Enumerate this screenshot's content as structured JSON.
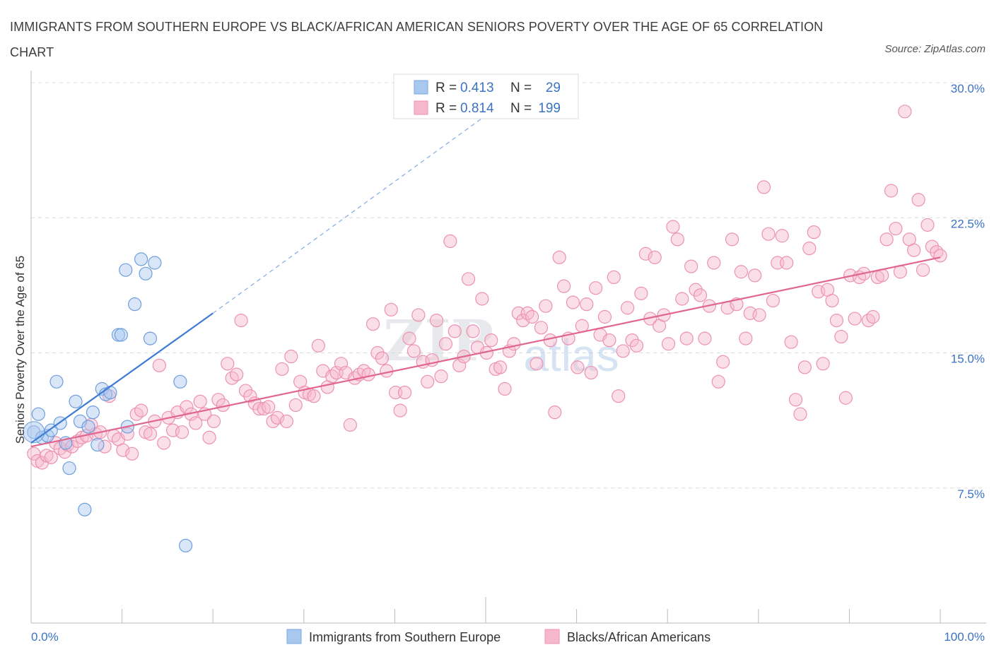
{
  "title": "IMMIGRANTS FROM SOUTHERN EUROPE VS BLACK/AFRICAN AMERICAN SENIORS POVERTY OVER THE AGE OF 65 CORRELATION CHART",
  "source": "Source: ZipAtlas.com",
  "watermark": "ZIPatlas",
  "legend_top": {
    "rows": [
      {
        "r_label": "R =",
        "r_value": "0.413",
        "n_label": "N =",
        "n_value": "29",
        "color": "#a9c8f0"
      },
      {
        "r_label": "R =",
        "r_value": "0.814",
        "n_label": "N =",
        "n_value": "199",
        "color": "#f6b8cc"
      }
    ]
  },
  "legend_bottom": [
    "Immigrants from Southern Europe",
    "Blacks/African Americans"
  ],
  "colors": {
    "blue": "#3e7bd4",
    "blue_fill": "#a9c8f0",
    "pink": "#e0668f",
    "pink_fill": "#f6b8cc",
    "tick": "#3b73c4"
  },
  "chart_data": {
    "type": "scatter",
    "title": "IMMIGRANTS FROM SOUTHERN EUROPE VS BLACK/AFRICAN AMERICAN SENIORS POVERTY OVER THE AGE OF 65 CORRELATION CHART",
    "xlabel": "",
    "ylabel": "Seniors Poverty Over the Age of 65",
    "x_tick_labels": [
      "0.0%",
      "100.0%"
    ],
    "y_tick_labels": [
      "7.5%",
      "15.0%",
      "22.5%",
      "30.0%"
    ],
    "y_ticks": [
      7.5,
      15.0,
      22.5,
      30.0
    ],
    "xlim": [
      0,
      100
    ],
    "ylim": [
      0,
      30.5
    ],
    "grid": true,
    "legend_placement": "top-center",
    "series": [
      {
        "name": "Immigrants from Southern Europe",
        "points": [
          [
            0.3,
            10.6
          ],
          [
            0.8,
            11.6
          ],
          [
            1.2,
            10.3
          ],
          [
            1.8,
            10.4
          ],
          [
            2.2,
            10.7
          ],
          [
            2.8,
            13.4
          ],
          [
            3.2,
            11.1
          ],
          [
            3.8,
            10.0
          ],
          [
            4.2,
            8.6
          ],
          [
            4.9,
            12.3
          ],
          [
            5.4,
            11.2
          ],
          [
            5.9,
            6.3
          ],
          [
            6.3,
            10.9
          ],
          [
            6.8,
            11.7
          ],
          [
            7.3,
            9.9
          ],
          [
            7.8,
            13.0
          ],
          [
            8.2,
            12.7
          ],
          [
            8.7,
            12.8
          ],
          [
            9.6,
            16.0
          ],
          [
            9.9,
            16.0
          ],
          [
            10.6,
            10.9
          ],
          [
            10.4,
            19.6
          ],
          [
            11.4,
            17.7
          ],
          [
            12.1,
            20.2
          ],
          [
            12.6,
            19.4
          ],
          [
            13.1,
            15.8
          ],
          [
            13.6,
            20.0
          ],
          [
            16.4,
            13.4
          ],
          [
            17.0,
            4.3
          ]
        ],
        "trend": {
          "x0": 0,
          "y0": 10.0,
          "x1": 20,
          "y1": 17.2
        },
        "trend_dashed": {
          "x0": 20,
          "y0": 17.2,
          "x1": 55,
          "y1": 30.0
        }
      },
      {
        "name": "Blacks/African Americans",
        "points": [
          [
            0.3,
            9.4
          ],
          [
            0.7,
            9.0
          ],
          [
            1.2,
            8.9
          ],
          [
            1.7,
            9.3
          ],
          [
            2.2,
            9.2
          ],
          [
            2.7,
            10.0
          ],
          [
            3.2,
            9.7
          ],
          [
            3.7,
            9.5
          ],
          [
            4.0,
            9.9
          ],
          [
            4.5,
            9.8
          ],
          [
            5.1,
            10.1
          ],
          [
            5.6,
            10.3
          ],
          [
            6.1,
            10.4
          ],
          [
            6.6,
            11.0
          ],
          [
            7.1,
            10.5
          ],
          [
            7.6,
            10.6
          ],
          [
            8.1,
            9.8
          ],
          [
            8.6,
            12.6
          ],
          [
            9.1,
            10.4
          ],
          [
            9.6,
            10.2
          ],
          [
            10.1,
            9.6
          ],
          [
            10.6,
            10.5
          ],
          [
            11.1,
            9.4
          ],
          [
            11.6,
            11.6
          ],
          [
            12.1,
            11.8
          ],
          [
            12.6,
            10.6
          ],
          [
            13.1,
            10.5
          ],
          [
            13.6,
            11.2
          ],
          [
            14.1,
            14.3
          ],
          [
            14.6,
            10.0
          ],
          [
            15.1,
            11.4
          ],
          [
            15.6,
            10.7
          ],
          [
            16.1,
            11.7
          ],
          [
            16.6,
            10.6
          ],
          [
            17.1,
            12.0
          ],
          [
            17.6,
            11.6
          ],
          [
            18.1,
            11.1
          ],
          [
            18.6,
            12.3
          ],
          [
            19.1,
            11.6
          ],
          [
            19.6,
            10.3
          ],
          [
            20.1,
            11.2
          ],
          [
            20.6,
            12.4
          ],
          [
            21.1,
            12.1
          ],
          [
            21.6,
            14.4
          ],
          [
            22.1,
            13.6
          ],
          [
            22.6,
            13.8
          ],
          [
            23.1,
            16.8
          ],
          [
            23.6,
            12.9
          ],
          [
            24.1,
            12.6
          ],
          [
            24.6,
            12.2
          ],
          [
            25.1,
            11.9
          ],
          [
            25.6,
            11.9
          ],
          [
            26.1,
            12.0
          ],
          [
            26.6,
            11.2
          ],
          [
            27.1,
            11.4
          ],
          [
            27.6,
            14.1
          ],
          [
            28.1,
            11.2
          ],
          [
            28.6,
            14.8
          ],
          [
            29.1,
            12.1
          ],
          [
            29.6,
            13.4
          ],
          [
            30.1,
            12.8
          ],
          [
            30.6,
            12.7
          ],
          [
            31.1,
            12.6
          ],
          [
            31.6,
            15.4
          ],
          [
            32.1,
            14.0
          ],
          [
            32.6,
            13.1
          ],
          [
            33.1,
            13.7
          ],
          [
            33.6,
            13.9
          ],
          [
            34.1,
            14.4
          ],
          [
            34.6,
            13.9
          ],
          [
            35.1,
            11.0
          ],
          [
            35.6,
            13.6
          ],
          [
            36.1,
            13.8
          ],
          [
            36.6,
            14.0
          ],
          [
            37.1,
            13.8
          ],
          [
            37.6,
            16.6
          ],
          [
            38.1,
            15.0
          ],
          [
            38.6,
            14.7
          ],
          [
            39.1,
            14.0
          ],
          [
            39.6,
            17.4
          ],
          [
            40.1,
            12.8
          ],
          [
            40.6,
            11.8
          ],
          [
            41.1,
            12.8
          ],
          [
            41.6,
            15.8
          ],
          [
            42.1,
            15.1
          ],
          [
            42.6,
            17.1
          ],
          [
            43.1,
            14.5
          ],
          [
            43.6,
            13.4
          ],
          [
            44.1,
            14.6
          ],
          [
            44.6,
            16.8
          ],
          [
            45.1,
            13.7
          ],
          [
            45.6,
            15.5
          ],
          [
            46.1,
            21.2
          ],
          [
            46.6,
            16.2
          ],
          [
            47.1,
            14.3
          ],
          [
            47.6,
            14.8
          ],
          [
            48.1,
            19.1
          ],
          [
            48.6,
            16.2
          ],
          [
            49.1,
            15.3
          ],
          [
            49.6,
            18.0
          ],
          [
            50.1,
            15.0
          ],
          [
            50.6,
            15.7
          ],
          [
            51.1,
            14.1
          ],
          [
            51.6,
            14.2
          ],
          [
            52.1,
            13.0
          ],
          [
            52.6,
            15.1
          ],
          [
            53.1,
            15.5
          ],
          [
            53.6,
            17.2
          ],
          [
            54.1,
            16.8
          ],
          [
            54.6,
            17.2
          ],
          [
            55.1,
            17.0
          ],
          [
            55.6,
            14.4
          ],
          [
            56.1,
            16.4
          ],
          [
            56.6,
            17.6
          ],
          [
            57.1,
            15.7
          ],
          [
            57.6,
            11.7
          ],
          [
            58.1,
            20.3
          ],
          [
            58.6,
            18.7
          ],
          [
            59.1,
            15.8
          ],
          [
            59.6,
            17.8
          ],
          [
            60.1,
            14.2
          ],
          [
            60.6,
            16.5
          ],
          [
            61.1,
            17.7
          ],
          [
            61.6,
            13.9
          ],
          [
            62.1,
            18.6
          ],
          [
            62.6,
            16.0
          ],
          [
            63.1,
            17.0
          ],
          [
            63.6,
            15.7
          ],
          [
            64.1,
            19.2
          ],
          [
            64.6,
            12.6
          ],
          [
            65.1,
            15.1
          ],
          [
            65.6,
            17.5
          ],
          [
            66.1,
            15.7
          ],
          [
            66.6,
            15.4
          ],
          [
            67.1,
            18.3
          ],
          [
            67.6,
            20.5
          ],
          [
            68.1,
            16.9
          ],
          [
            68.6,
            20.3
          ],
          [
            69.1,
            16.5
          ],
          [
            69.6,
            17.1
          ],
          [
            70.1,
            15.5
          ],
          [
            70.6,
            22.0
          ],
          [
            71.1,
            21.3
          ],
          [
            71.6,
            18.0
          ],
          [
            72.1,
            15.8
          ],
          [
            72.6,
            19.8
          ],
          [
            73.1,
            18.5
          ],
          [
            73.6,
            18.2
          ],
          [
            74.1,
            15.8
          ],
          [
            74.6,
            17.6
          ],
          [
            75.1,
            20.0
          ],
          [
            75.6,
            13.4
          ],
          [
            76.1,
            14.5
          ],
          [
            76.6,
            17.5
          ],
          [
            77.1,
            21.3
          ],
          [
            77.6,
            17.7
          ],
          [
            78.1,
            19.5
          ],
          [
            78.6,
            15.8
          ],
          [
            79.1,
            17.2
          ],
          [
            79.6,
            19.3
          ],
          [
            80.1,
            17.1
          ],
          [
            80.6,
            24.2
          ],
          [
            81.1,
            21.6
          ],
          [
            81.6,
            17.9
          ],
          [
            82.1,
            20.0
          ],
          [
            82.6,
            21.5
          ],
          [
            83.1,
            20.0
          ],
          [
            83.6,
            15.6
          ],
          [
            84.1,
            12.4
          ],
          [
            84.6,
            11.6
          ],
          [
            85.1,
            14.2
          ],
          [
            85.6,
            20.8
          ],
          [
            86.1,
            21.7
          ],
          [
            86.6,
            18.4
          ],
          [
            87.1,
            14.4
          ],
          [
            87.6,
            18.5
          ],
          [
            88.1,
            17.9
          ],
          [
            88.6,
            16.8
          ],
          [
            89.1,
            15.9
          ],
          [
            89.6,
            12.5
          ],
          [
            90.1,
            19.3
          ],
          [
            90.6,
            16.9
          ],
          [
            91.1,
            19.2
          ],
          [
            91.6,
            19.4
          ],
          [
            92.1,
            16.8
          ],
          [
            92.6,
            17.0
          ],
          [
            93.1,
            19.2
          ],
          [
            93.6,
            19.3
          ],
          [
            94.1,
            21.3
          ],
          [
            94.6,
            24.0
          ],
          [
            95.1,
            21.9
          ],
          [
            95.6,
            19.5
          ],
          [
            96.1,
            28.4
          ],
          [
            96.6,
            21.3
          ],
          [
            97.1,
            20.7
          ],
          [
            97.6,
            23.5
          ],
          [
            98.1,
            19.6
          ],
          [
            98.6,
            22.1
          ],
          [
            99.1,
            20.9
          ],
          [
            99.6,
            20.6
          ],
          [
            100.0,
            20.4
          ]
        ],
        "trend": {
          "x0": 0,
          "y0": 9.8,
          "x1": 100,
          "y1": 20.3
        }
      }
    ]
  }
}
